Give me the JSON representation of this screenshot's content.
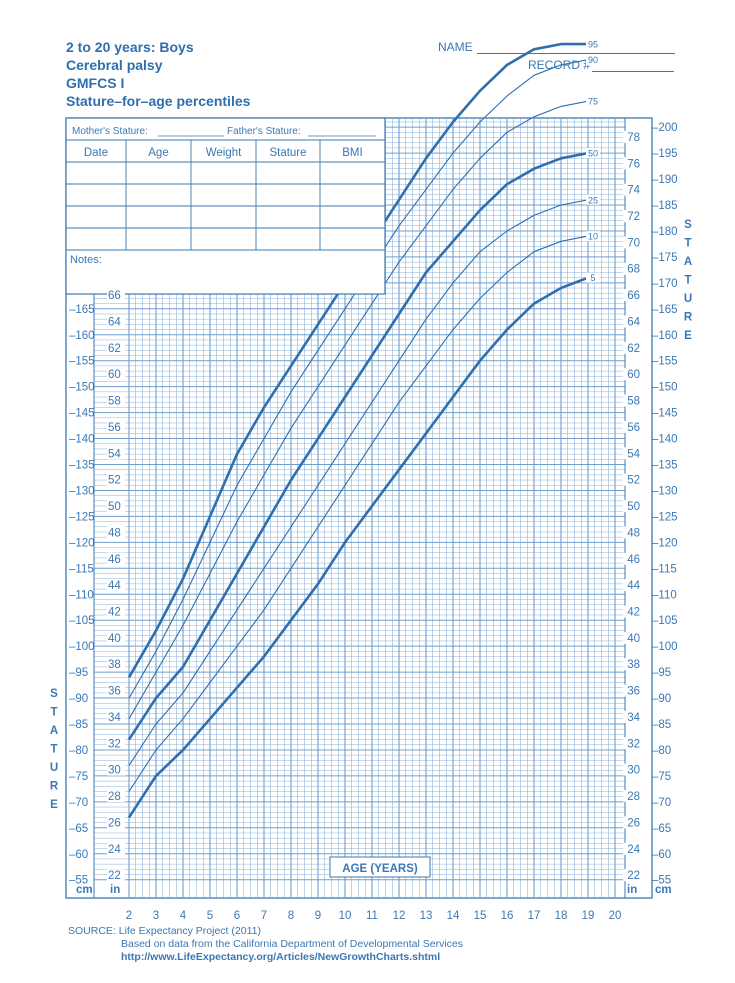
{
  "header": {
    "line1": "2 to 20 years: Boys",
    "line2": "Cerebral palsy",
    "line3": "GMFCS I",
    "line4": "Stature–for–age percentiles"
  },
  "fields": {
    "name_label": "NAME",
    "record_label": "RECORD #"
  },
  "record_table": {
    "mother_label": "Mother's Stature:",
    "father_label": "Father's Stature:",
    "columns": [
      "Date",
      "Age",
      "Weight",
      "Stature",
      "BMI"
    ],
    "notes_label": "Notes:"
  },
  "axis_labels": {
    "stature_letters": [
      "S",
      "T",
      "A",
      "T",
      "U",
      "R",
      "E"
    ],
    "cm": "cm",
    "in": "in",
    "age_title": "AGE (YEARS)"
  },
  "source": {
    "line1": "SOURCE: Life Expectancy Project (2011)",
    "line2": "Based on data from the California Department of Developmental Services",
    "line3": "http://www.LifeExpectancy.org/Articles/NewGrowthCharts.shtml"
  },
  "colors": {
    "ink": "#3a78b5",
    "grid": "#6f9fcf",
    "curve": "#2f6fae"
  },
  "chart_data": {
    "type": "line",
    "title": "Stature–for–age percentiles",
    "xlabel": "AGE (YEARS)",
    "ylabel": "STATURE",
    "xlim": [
      2,
      20
    ],
    "ylim_cm": [
      55,
      200
    ],
    "ylim_in": [
      22,
      78
    ],
    "x_ticks": [
      2,
      3,
      4,
      5,
      6,
      7,
      8,
      9,
      10,
      11,
      12,
      13,
      14,
      15,
      16,
      17,
      18,
      19,
      20
    ],
    "cm_ticks_left": [
      55,
      60,
      65,
      70,
      75,
      80,
      85,
      90,
      95,
      100,
      105,
      110,
      115,
      120,
      125,
      130,
      135,
      140,
      145,
      150,
      155,
      160,
      165
    ],
    "cm_ticks_right": [
      55,
      60,
      65,
      70,
      75,
      80,
      85,
      90,
      95,
      100,
      105,
      110,
      115,
      120,
      125,
      130,
      135,
      140,
      145,
      150,
      155,
      160,
      165,
      170,
      175,
      180,
      185,
      190,
      195,
      200
    ],
    "in_ticks_left": [
      22,
      24,
      26,
      28,
      30,
      32,
      34,
      36,
      38,
      40,
      42,
      44,
      46,
      48,
      50,
      52,
      54,
      56,
      58,
      60,
      62,
      64,
      66
    ],
    "in_ticks_right": [
      22,
      24,
      26,
      28,
      30,
      32,
      34,
      36,
      38,
      40,
      42,
      44,
      46,
      48,
      50,
      52,
      54,
      56,
      58,
      60,
      62,
      64,
      66,
      68,
      70,
      72,
      74,
      76,
      78
    ],
    "x": [
      2,
      3,
      4,
      5,
      6,
      7,
      8,
      9,
      10,
      11,
      12,
      13,
      14,
      15,
      16,
      17,
      18,
      19
    ],
    "series": [
      {
        "name": "95",
        "bold": true,
        "values": [
          94,
          103,
          113,
          125,
          137,
          146,
          154,
          162,
          170,
          178,
          186,
          194,
          201,
          207,
          212,
          215,
          216,
          216
        ]
      },
      {
        "name": "90",
        "bold": false,
        "values": [
          90,
          99,
          109,
          120,
          131,
          140,
          149,
          157,
          165,
          173,
          181,
          188,
          195,
          201,
          206,
          210,
          212,
          213
        ]
      },
      {
        "name": "75",
        "bold": false,
        "values": [
          86,
          95,
          104,
          114,
          124,
          133,
          142,
          150,
          158,
          166,
          174,
          181,
          188,
          194,
          199,
          202,
          204,
          205
        ]
      },
      {
        "name": "50",
        "bold": true,
        "values": [
          82,
          90,
          96,
          105,
          114,
          123,
          132,
          140,
          148,
          156,
          164,
          172,
          178,
          184,
          189,
          192,
          194,
          195
        ]
      },
      {
        "name": "25",
        "bold": false,
        "values": [
          77,
          85,
          91,
          99,
          107,
          115,
          123,
          131,
          139,
          147,
          155,
          163,
          170,
          176,
          180,
          183,
          185,
          186
        ]
      },
      {
        "name": "10",
        "bold": false,
        "values": [
          72,
          80,
          86,
          93,
          100,
          107,
          115,
          123,
          131,
          139,
          147,
          154,
          161,
          167,
          172,
          176,
          178,
          179
        ]
      },
      {
        "name": "5",
        "bold": true,
        "values": [
          67,
          75,
          80,
          86,
          92,
          98,
          105,
          112,
          120,
          127,
          134,
          141,
          148,
          155,
          161,
          166,
          169,
          171
        ]
      }
    ]
  }
}
